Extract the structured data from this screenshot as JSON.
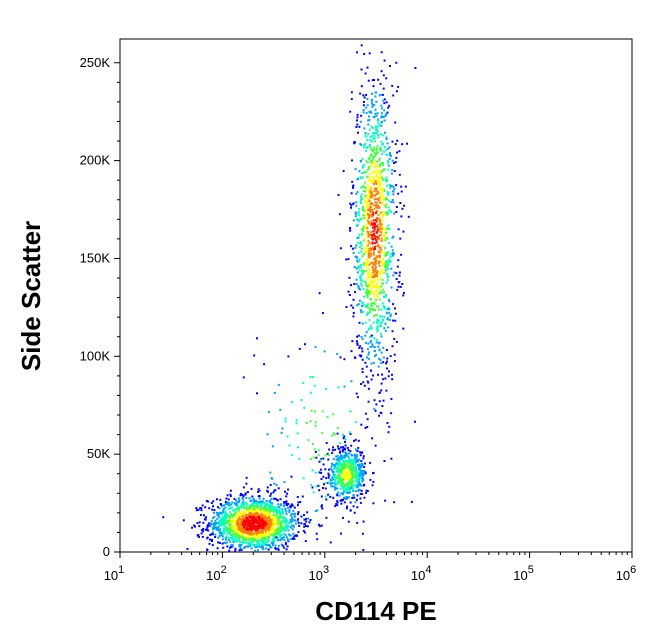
{
  "chart_data": {
    "type": "scatter",
    "title": "",
    "xlabel": "CD114 PE",
    "ylabel": "Side Scatter",
    "x_scale": "log",
    "xlim": [
      10,
      1000000
    ],
    "ylim": [
      0,
      262144
    ],
    "x_ticks": [
      {
        "value": 10,
        "base": "10",
        "exp": "1"
      },
      {
        "value": 100,
        "base": "10",
        "exp": "2"
      },
      {
        "value": 1000,
        "base": "10",
        "exp": "3"
      },
      {
        "value": 10000,
        "base": "10",
        "exp": "4"
      },
      {
        "value": 100000,
        "base": "10",
        "exp": "5"
      },
      {
        "value": 1000000,
        "base": "10",
        "exp": "6"
      }
    ],
    "y_ticks": [
      {
        "value": 0,
        "label": "0"
      },
      {
        "value": 50000,
        "label": "50K"
      },
      {
        "value": 100000,
        "label": "100K"
      },
      {
        "value": 150000,
        "label": "150K"
      },
      {
        "value": 200000,
        "label": "200K"
      },
      {
        "value": 250000,
        "label": "250K"
      }
    ],
    "grid": false,
    "legend": "none",
    "density_colormap": [
      "#0000ff",
      "#00a0ff",
      "#00ffc0",
      "#40ff40",
      "#ffff00",
      "#ff8000",
      "#ff0000"
    ],
    "populations": [
      {
        "center_x": 200,
        "center_y": 15000,
        "spread_log_x": 0.22,
        "spread_y": 7000,
        "relative_density": 1.0
      },
      {
        "center_x": 3000,
        "center_y": 165000,
        "spread_log_x": 0.11,
        "spread_y": 38000,
        "relative_density": 0.8
      },
      {
        "center_x": 1600,
        "center_y": 40000,
        "spread_log_x": 0.1,
        "spread_y": 7000,
        "relative_density": 0.35
      },
      {
        "center_x": 900,
        "center_y": 60000,
        "spread_log_x": 0.35,
        "spread_y": 30000,
        "relative_density": 0.08
      }
    ]
  }
}
